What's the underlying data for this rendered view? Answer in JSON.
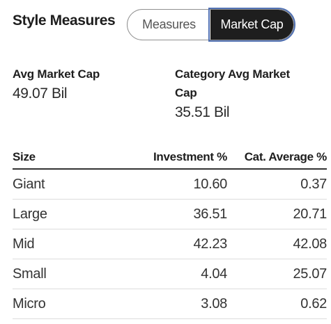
{
  "header": {
    "title": "Style Measures",
    "toggle": [
      {
        "label": "Measures",
        "active": false
      },
      {
        "label": "Market Cap",
        "active": true
      }
    ]
  },
  "stats": {
    "avg_market_cap": {
      "label": "Avg Market Cap",
      "value": "49.07 Bil"
    },
    "category_avg_market_cap": {
      "label": "Category Avg Market Cap",
      "value": "35.51 Bil"
    }
  },
  "table": {
    "columns": [
      "Size",
      "Investment %",
      "Cat. Average %"
    ],
    "rows": [
      [
        "Giant",
        "10.60",
        "0.37"
      ],
      [
        "Large",
        "36.51",
        "20.71"
      ],
      [
        "Mid",
        "42.23",
        "42.08"
      ],
      [
        "Small",
        "4.04",
        "25.07"
      ],
      [
        "Micro",
        "3.08",
        "0.62"
      ]
    ]
  },
  "colors": {
    "active_toggle_bg": "#1e1e1e",
    "focus_outline": "#4f6fb1"
  }
}
